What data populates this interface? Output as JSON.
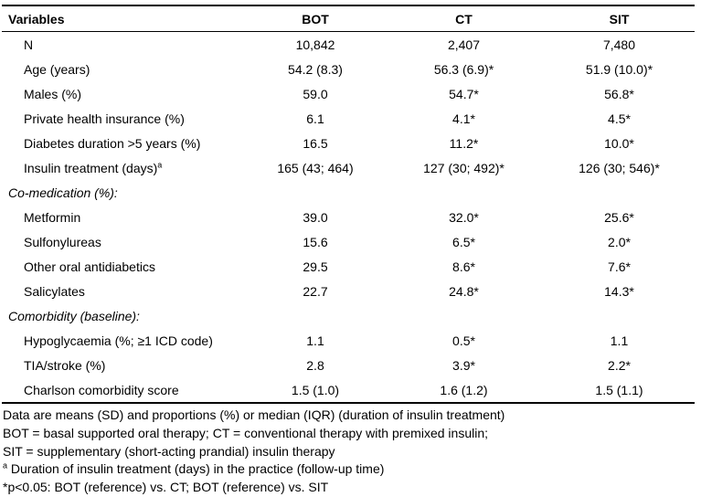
{
  "chart_data": {
    "type": "table",
    "columns": [
      "Variables",
      "BOT",
      "CT",
      "SIT"
    ],
    "rows": [
      {
        "label": "N",
        "values": [
          "10,842",
          "2,407",
          "7,480"
        ]
      },
      {
        "label": "Age (years)",
        "values": [
          "54.2 (8.3)",
          "56.3 (6.9)*",
          "51.9 (10.0)*"
        ]
      },
      {
        "label": "Males (%)",
        "values": [
          "59.0",
          "54.7*",
          "56.8*"
        ]
      },
      {
        "label": "Private health insurance (%)",
        "values": [
          "6.1",
          "4.1*",
          "4.5*"
        ]
      },
      {
        "label": "Diabetes duration >5 years (%)",
        "values": [
          "16.5",
          "11.2*",
          "10.0*"
        ]
      },
      {
        "label": "Insulin treatment (days)",
        "sup": "a",
        "values": [
          "165 (43; 464)",
          "127 (30; 492)*",
          "126 (30; 546)*"
        ]
      },
      {
        "label": "Co-medication (%):",
        "section": true,
        "values": [
          "",
          "",
          ""
        ]
      },
      {
        "label": "Metformin",
        "values": [
          "39.0",
          "32.0*",
          "25.6*"
        ]
      },
      {
        "label": "Sulfonylureas",
        "values": [
          "15.6",
          "6.5*",
          "2.0*"
        ]
      },
      {
        "label": "Other oral antidiabetics",
        "values": [
          "29.5",
          "8.6*",
          "7.6*"
        ]
      },
      {
        "label": "Salicylates",
        "values": [
          "22.7",
          "24.8*",
          "14.3*"
        ]
      },
      {
        "label": "Comorbidity (baseline):",
        "section": true,
        "values": [
          "",
          "",
          ""
        ]
      },
      {
        "label": "Hypoglycaemia (%; ≥1 ICD code)",
        "values": [
          "1.1",
          "0.5*",
          "1.1"
        ]
      },
      {
        "label": "TIA/stroke (%)",
        "values": [
          "2.8",
          "3.9*",
          "2.2*"
        ]
      },
      {
        "label": "Charlson comorbidity score",
        "values": [
          "1.5 (1.0)",
          "1.6 (1.2)",
          "1.5 (1.1)"
        ]
      }
    ]
  },
  "footnotes": [
    {
      "text": "Data are means (SD) and proportions (%) or median (IQR) (duration of insulin treatment)"
    },
    {
      "text": "BOT = basal supported oral therapy; CT = conventional therapy with premixed insulin;"
    },
    {
      "text": "SIT = supplementary (short-acting prandial) insulin therapy"
    },
    {
      "sup": "a",
      "text": " Duration of insulin treatment (days) in the practice (follow-up time)"
    },
    {
      "text": "*p<0.05: BOT (reference) vs. CT; BOT (reference) vs. SIT"
    }
  ],
  "colors": {
    "text": "#000000",
    "background": "#ffffff",
    "rule": "#000000"
  }
}
